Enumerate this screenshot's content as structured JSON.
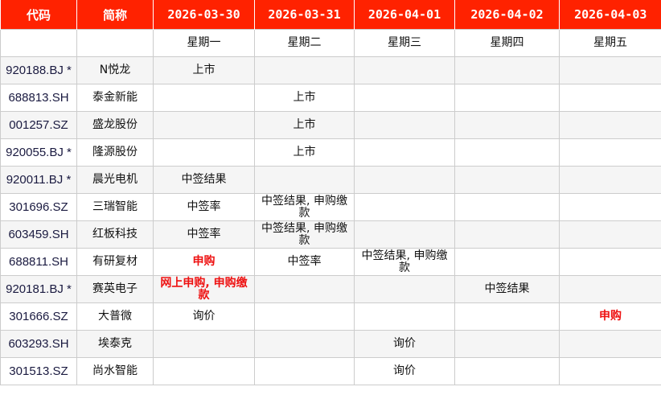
{
  "header": [
    "代码",
    "简称",
    "2026-03-30",
    "2026-03-31",
    "2026-04-01",
    "2026-04-02",
    "2026-04-03"
  ],
  "weekdays": [
    "星期一",
    "星期二",
    "星期三",
    "星期四",
    "星期五"
  ],
  "accent": "#ff2200",
  "highlight_color": "#ee1111",
  "rows": [
    {
      "code": "920188.BJ *",
      "name": "N悦龙",
      "cells": [
        "上市",
        "",
        "",
        "",
        ""
      ],
      "red": []
    },
    {
      "code": "688813.SH",
      "name": "泰金新能",
      "cells": [
        "",
        "上市",
        "",
        "",
        ""
      ],
      "red": []
    },
    {
      "code": "001257.SZ",
      "name": "盛龙股份",
      "cells": [
        "",
        "上市",
        "",
        "",
        ""
      ],
      "red": []
    },
    {
      "code": "920055.BJ *",
      "name": "隆源股份",
      "cells": [
        "",
        "上市",
        "",
        "",
        ""
      ],
      "red": []
    },
    {
      "code": "920011.BJ *",
      "name": "晨光电机",
      "cells": [
        "中签结果",
        "",
        "",
        "",
        ""
      ],
      "red": []
    },
    {
      "code": "301696.SZ",
      "name": "三瑞智能",
      "cells": [
        "中签率",
        "中签结果, 申购缴款",
        "",
        "",
        ""
      ],
      "red": []
    },
    {
      "code": "603459.SH",
      "name": "红板科技",
      "cells": [
        "中签率",
        "中签结果, 申购缴款",
        "",
        "",
        ""
      ],
      "red": []
    },
    {
      "code": "688811.SH",
      "name": "有研复材",
      "cells": [
        "申购",
        "中签率",
        "中签结果, 申购缴款",
        "",
        ""
      ],
      "red": [
        0
      ]
    },
    {
      "code": "920181.BJ *",
      "name": "赛英电子",
      "cells": [
        "网上申购, 申购缴款",
        "",
        "",
        "中签结果",
        ""
      ],
      "red": [
        0
      ]
    },
    {
      "code": "301666.SZ",
      "name": "大普微",
      "cells": [
        "询价",
        "",
        "",
        "",
        "申购"
      ],
      "red": [
        4
      ]
    },
    {
      "code": "603293.SH",
      "name": "埃泰克",
      "cells": [
        "",
        "",
        "询价",
        "",
        ""
      ],
      "red": []
    },
    {
      "code": "301513.SZ",
      "name": "尚水智能",
      "cells": [
        "",
        "",
        "询价",
        "",
        ""
      ],
      "red": []
    }
  ]
}
